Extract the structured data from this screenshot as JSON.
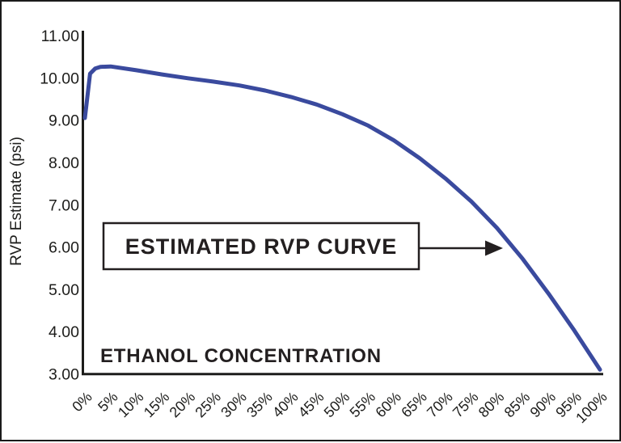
{
  "annotation": {
    "label": "ESTIMATED RVP CURVE"
  },
  "chart_data": {
    "type": "line",
    "title": "",
    "ylabel": "RVP Estimate (psi)",
    "xlabel": "ETHANOL CONCENTRATION",
    "xlim": [
      0,
      100
    ],
    "ylim": [
      3,
      11
    ],
    "grid": false,
    "legend": "none",
    "line_color": "#3a4a9e",
    "axis_color": "#1d1d1b",
    "y_ticks": [
      "11.00",
      "10.00",
      "9.00",
      "8.00",
      "7.00",
      "6.00",
      "5.00",
      "4.00",
      "3.00"
    ],
    "x_ticks": [
      "0%",
      "5%",
      "10%",
      "15%",
      "20%",
      "25%",
      "30%",
      "35%",
      "40%",
      "45%",
      "50%",
      "55%",
      "60%",
      "65%",
      "70%",
      "75%",
      "80%",
      "85%",
      "90%",
      "95%",
      "100%"
    ],
    "series": [
      {
        "name": "Estimated RVP Curve",
        "x": [
          0,
          1,
          2,
          3,
          5,
          10,
          15,
          20,
          25,
          30,
          35,
          40,
          45,
          50,
          55,
          60,
          65,
          70,
          75,
          80,
          85,
          90,
          95,
          100
        ],
        "y": [
          9.05,
          10.1,
          10.22,
          10.26,
          10.27,
          10.18,
          10.08,
          9.99,
          9.91,
          9.82,
          9.7,
          9.55,
          9.37,
          9.14,
          8.87,
          8.52,
          8.1,
          7.62,
          7.08,
          6.45,
          5.72,
          4.9,
          4.03,
          3.1
        ]
      }
    ]
  }
}
